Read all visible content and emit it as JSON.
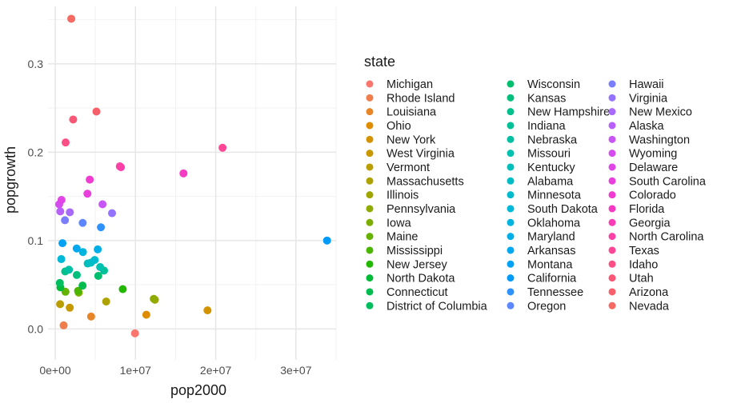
{
  "chart_data": {
    "type": "scatter",
    "xlabel": "pop2000",
    "ylabel": "popgrowth",
    "xlim": [
      -900000,
      35000000
    ],
    "ylim": [
      -0.035,
      0.365
    ],
    "x_ticks": [
      0,
      10000000,
      20000000,
      30000000
    ],
    "x_tick_labels": [
      "0e+00",
      "1e+07",
      "2e+07",
      "3e+07"
    ],
    "y_ticks": [
      0.0,
      0.1,
      0.2,
      0.3
    ],
    "y_tick_labels": [
      "0.0",
      "0.1",
      "0.2",
      "0.3"
    ],
    "grid": true,
    "legend": {
      "title": "state",
      "placement": "right",
      "columns": 3
    },
    "points": [
      {
        "state": "Michigan",
        "x": 9938444,
        "y": -0.005,
        "color": "#F8766D"
      },
      {
        "state": "Rhode Island",
        "x": 1048319,
        "y": 0.004,
        "color": "#F07E4C"
      },
      {
        "state": "Louisiana",
        "x": 4468976,
        "y": 0.014,
        "color": "#E88526"
      },
      {
        "state": "Ohio",
        "x": 11353140,
        "y": 0.016,
        "color": "#DE8C00"
      },
      {
        "state": "New York",
        "x": 18976457,
        "y": 0.021,
        "color": "#D39200"
      },
      {
        "state": "West Virginia",
        "x": 1808344,
        "y": 0.024,
        "color": "#C79800"
      },
      {
        "state": "Vermont",
        "x": 608827,
        "y": 0.028,
        "color": "#BA9E00"
      },
      {
        "state": "Massachusetts",
        "x": 6349097,
        "y": 0.031,
        "color": "#ADA200"
      },
      {
        "state": "Illinois",
        "x": 12419293,
        "y": 0.033,
        "color": "#9FA600"
      },
      {
        "state": "Pennsylvania",
        "x": 12281054,
        "y": 0.034,
        "color": "#8FAA00"
      },
      {
        "state": "Iowa",
        "x": 2926324,
        "y": 0.041,
        "color": "#7CAE00"
      },
      {
        "state": "Maine",
        "x": 1274923,
        "y": 0.042,
        "color": "#66B200"
      },
      {
        "state": "Mississippi",
        "x": 2844658,
        "y": 0.043,
        "color": "#4CB500"
      },
      {
        "state": "New Jersey",
        "x": 8414350,
        "y": 0.045,
        "color": "#22B800"
      },
      {
        "state": "North Dakota",
        "x": 642200,
        "y": 0.047,
        "color": "#00BA38"
      },
      {
        "state": "Connecticut",
        "x": 3405565,
        "y": 0.049,
        "color": "#00BB4E"
      },
      {
        "state": "District of Columbia",
        "x": 572059,
        "y": 0.052,
        "color": "#00BD5F"
      },
      {
        "state": "Wisconsin",
        "x": 5363675,
        "y": 0.06,
        "color": "#00BE6F"
      },
      {
        "state": "Kansas",
        "x": 2688418,
        "y": 0.061,
        "color": "#00BF7D"
      },
      {
        "state": "New Hampshire",
        "x": 1235786,
        "y": 0.065,
        "color": "#00C08B"
      },
      {
        "state": "Indiana",
        "x": 6080485,
        "y": 0.066,
        "color": "#00C098"
      },
      {
        "state": "Nebraska",
        "x": 1711263,
        "y": 0.067,
        "color": "#00C0A4"
      },
      {
        "state": "Missouri",
        "x": 5595211,
        "y": 0.07,
        "color": "#00C0AF"
      },
      {
        "state": "Kentucky",
        "x": 4041769,
        "y": 0.074,
        "color": "#00BFBA"
      },
      {
        "state": "Alabama",
        "x": 4447100,
        "y": 0.075,
        "color": "#00BDC4"
      },
      {
        "state": "Minnesota",
        "x": 4919479,
        "y": 0.078,
        "color": "#00BBCE"
      },
      {
        "state": "South Dakota",
        "x": 754844,
        "y": 0.079,
        "color": "#00B8D7"
      },
      {
        "state": "Oklahoma",
        "x": 3450654,
        "y": 0.087,
        "color": "#00B4E0"
      },
      {
        "state": "Maryland",
        "x": 5296486,
        "y": 0.09,
        "color": "#00AFE8"
      },
      {
        "state": "Arkansas",
        "x": 2673400,
        "y": 0.091,
        "color": "#00A9EF"
      },
      {
        "state": "Montana",
        "x": 902195,
        "y": 0.097,
        "color": "#00A2F5"
      },
      {
        "state": "California",
        "x": 33871648,
        "y": 0.1,
        "color": "#009AF9"
      },
      {
        "state": "Tennessee",
        "x": 5689283,
        "y": 0.115,
        "color": "#2F91FC"
      },
      {
        "state": "Oregon",
        "x": 3421399,
        "y": 0.12,
        "color": "#5D87FF"
      },
      {
        "state": "Hawaii",
        "x": 1211537,
        "y": 0.123,
        "color": "#7B7DFF"
      },
      {
        "state": "Virginia",
        "x": 7078515,
        "y": 0.131,
        "color": "#9373FF"
      },
      {
        "state": "New Mexico",
        "x": 1819046,
        "y": 0.132,
        "color": "#A869FF"
      },
      {
        "state": "Alaska",
        "x": 626932,
        "y": 0.133,
        "color": "#B95FFB"
      },
      {
        "state": "Washington",
        "x": 5894121,
        "y": 0.141,
        "color": "#C855F6"
      },
      {
        "state": "Wyoming",
        "x": 493782,
        "y": 0.141,
        "color": "#D54CEF"
      },
      {
        "state": "Delaware",
        "x": 783600,
        "y": 0.146,
        "color": "#E045E6"
      },
      {
        "state": "South Carolina",
        "x": 4012012,
        "y": 0.153,
        "color": "#E93FDC"
      },
      {
        "state": "Colorado",
        "x": 4301261,
        "y": 0.169,
        "color": "#F03CD0"
      },
      {
        "state": "Florida",
        "x": 15982378,
        "y": 0.176,
        "color": "#F63BC3"
      },
      {
        "state": "Georgia",
        "x": 8186453,
        "y": 0.183,
        "color": "#FA3DB5"
      },
      {
        "state": "North Carolina",
        "x": 8049313,
        "y": 0.184,
        "color": "#FC41A6"
      },
      {
        "state": "Texas",
        "x": 20851820,
        "y": 0.205,
        "color": "#FD4796"
      },
      {
        "state": "Idaho",
        "x": 1293953,
        "y": 0.211,
        "color": "#FC4F86"
      },
      {
        "state": "Utah",
        "x": 2233169,
        "y": 0.237,
        "color": "#FA5776"
      },
      {
        "state": "Arizona",
        "x": 5130632,
        "y": 0.246,
        "color": "#F7606A"
      },
      {
        "state": "Nevada",
        "x": 1998257,
        "y": 0.351,
        "color": "#F66A64"
      }
    ]
  }
}
